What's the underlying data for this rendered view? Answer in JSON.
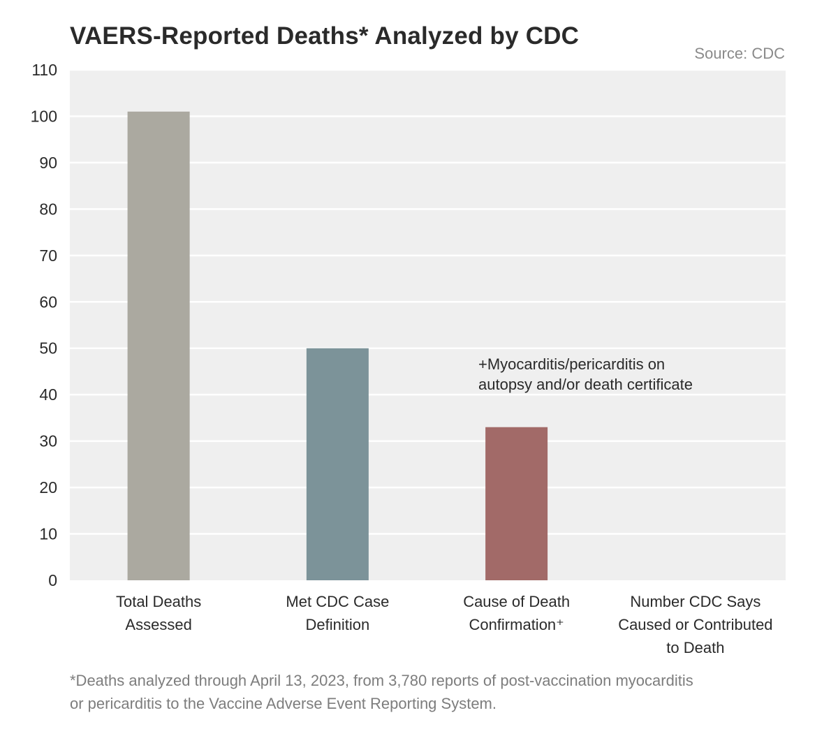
{
  "title": "VAERS-Reported Deaths* Analyzed by CDC",
  "source": "Source: CDC",
  "annotation": {
    "line1": "+Myocarditis/pericarditis on",
    "line2": "autopsy and/or death certificate"
  },
  "footnote": {
    "line1": "*Deaths analyzed through April 13, 2023, from 3,780 reports of post-vaccination myocarditis",
    "line2": "or pericarditis to the Vaccine Adverse Event Reporting System."
  },
  "chart_data": {
    "type": "bar",
    "title": "VAERS-Reported Deaths* Analyzed by CDC",
    "categories": [
      [
        "Total Deaths",
        "Assessed"
      ],
      [
        "Met CDC Case",
        "Definition"
      ],
      [
        "Cause of Death",
        "Confirmation⁺"
      ],
      [
        "Number CDC Says",
        "Caused or Contributed",
        "to Death"
      ]
    ],
    "values": [
      101,
      50,
      33,
      0
    ],
    "colors": [
      "#aba9a0",
      "#7c9399",
      "#a26a68",
      "#9a9a9a"
    ],
    "ylim": [
      0,
      110
    ],
    "yticks": [
      0,
      10,
      20,
      30,
      40,
      50,
      60,
      70,
      80,
      90,
      100,
      110
    ],
    "grid": true,
    "plot_background": "#efefef",
    "xlabel": "",
    "ylabel": ""
  }
}
